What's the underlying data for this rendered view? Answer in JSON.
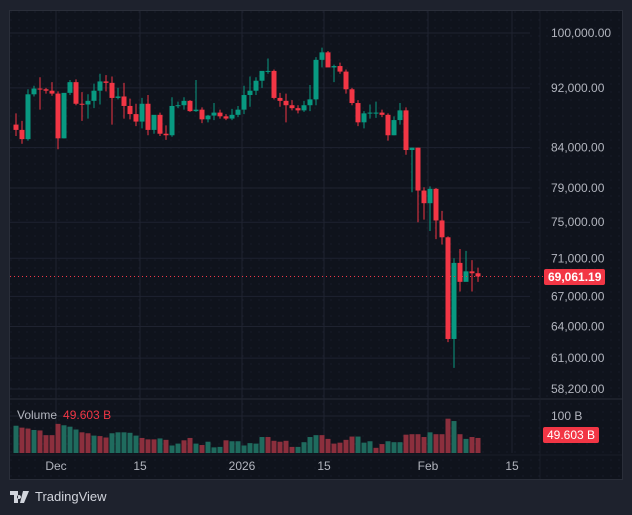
{
  "chart_data": {
    "type": "candlestick",
    "title": "",
    "scale": "log",
    "colors": {
      "up": "#089981",
      "down": "#f23645",
      "vol_up": "#1f6b5e",
      "vol_down": "#8c2f3d",
      "grid": "#1f2330",
      "bg": "#0f131c"
    },
    "y_ticks": [
      "100,000.00",
      "92,000.00",
      "84,000.00",
      "79,000.00",
      "75,000.00",
      "71,000.00",
      "67,000.00",
      "64,000.00",
      "61,000.00",
      "58,200.00"
    ],
    "y_tick_values": [
      100000,
      92000,
      84000,
      79000,
      75000,
      71000,
      67000,
      64000,
      61000,
      58200
    ],
    "x_ticks": [
      {
        "label": "Dec",
        "x": 46
      },
      {
        "label": "15",
        "x": 130
      },
      {
        "label": "2026",
        "x": 232
      },
      {
        "label": "15",
        "x": 314
      },
      {
        "label": "Feb",
        "x": 418
      },
      {
        "label": "15",
        "x": 502
      }
    ],
    "last_price": 69061.19,
    "last_price_label": "69,061.19",
    "volume": {
      "label": "Volume",
      "value_label": "49.603 B",
      "axis_tick": "100 B",
      "last_label": "49.603 B"
    },
    "candles": [
      [
        87000,
        88500,
        85500,
        86300
      ],
      [
        86300,
        87500,
        84500,
        85100
      ],
      [
        85100,
        91800,
        84900,
        91100
      ],
      [
        91100,
        92300,
        90800,
        91900
      ],
      [
        91900,
        93500,
        89000,
        91800
      ],
      [
        91800,
        92000,
        91200,
        91600
      ],
      [
        91600,
        92800,
        90900,
        91200
      ],
      [
        91200,
        91500,
        83800,
        85200
      ],
      [
        85200,
        91200,
        85200,
        91300
      ],
      [
        91300,
        93100,
        91000,
        92800
      ],
      [
        92800,
        93200,
        89600,
        89800
      ],
      [
        89800,
        91400,
        87500,
        89700
      ],
      [
        89700,
        91100,
        87800,
        90200
      ],
      [
        90200,
        92600,
        89200,
        91600
      ],
      [
        91600,
        94000,
        89700,
        92900
      ],
      [
        92900,
        93800,
        91500,
        92700
      ],
      [
        92700,
        93600,
        87000,
        90600
      ],
      [
        90600,
        92000,
        90400,
        90800
      ],
      [
        90800,
        92700,
        87800,
        89500
      ],
      [
        89500,
        90500,
        87700,
        88400
      ],
      [
        88400,
        89800,
        86800,
        87400
      ],
      [
        87400,
        90600,
        86500,
        89800
      ],
      [
        89800,
        91000,
        85600,
        86300
      ],
      [
        86300,
        87600,
        85800,
        88300
      ],
      [
        88300,
        88600,
        85500,
        85800
      ],
      [
        85800,
        86900,
        85000,
        85600
      ],
      [
        85600,
        90700,
        85400,
        89500
      ],
      [
        89500,
        90100,
        89200,
        89600
      ],
      [
        89600,
        90700,
        89000,
        90200
      ],
      [
        90200,
        90300,
        88700,
        88800
      ],
      [
        88800,
        93100,
        88700,
        89000
      ],
      [
        89000,
        89300,
        87200,
        87700
      ],
      [
        87700,
        88300,
        87300,
        88200
      ],
      [
        88200,
        89900,
        87600,
        88600
      ],
      [
        88600,
        89000,
        87800,
        88100
      ],
      [
        88100,
        88400,
        87600,
        87800
      ],
      [
        87800,
        89100,
        87600,
        88300
      ],
      [
        88300,
        89500,
        88000,
        89000
      ],
      [
        89000,
        92300,
        88400,
        91000
      ],
      [
        91000,
        93600,
        89400,
        91600
      ],
      [
        91600,
        93500,
        91000,
        93000
      ],
      [
        93000,
        94000,
        92000,
        94400
      ],
      [
        94400,
        96200,
        94000,
        94400
      ],
      [
        94400,
        94600,
        90400,
        90600
      ],
      [
        90600,
        91300,
        89400,
        90200
      ],
      [
        90200,
        91200,
        87300,
        89600
      ],
      [
        89600,
        90300,
        88900,
        89200
      ],
      [
        89200,
        89600,
        88500,
        88900
      ],
      [
        88900,
        90200,
        88700,
        89600
      ],
      [
        89600,
        92400,
        88800,
        90400
      ],
      [
        90400,
        96400,
        89600,
        96000
      ],
      [
        96000,
        97800,
        94900,
        97100
      ],
      [
        97100,
        97300,
        95000,
        94900
      ],
      [
        94900,
        95300,
        92800,
        95100
      ],
      [
        95100,
        95600,
        94000,
        94300
      ],
      [
        94300,
        94600,
        91200,
        91800
      ],
      [
        91800,
        92000,
        89600,
        89900
      ],
      [
        89900,
        90300,
        86800,
        87300
      ],
      [
        87300,
        88800,
        86500,
        88500
      ],
      [
        88500,
        89700,
        87800,
        88600
      ],
      [
        88600,
        90100,
        87900,
        88600
      ],
      [
        88600,
        89000,
        88000,
        88300
      ],
      [
        88300,
        88500,
        84900,
        85600
      ],
      [
        85600,
        88100,
        85600,
        87600
      ],
      [
        87600,
        89900,
        87000,
        88900
      ],
      [
        88900,
        89300,
        83100,
        83700
      ],
      [
        83700,
        84000,
        78500,
        84000
      ],
      [
        84000,
        84000,
        75000,
        78700
      ],
      [
        78700,
        79100,
        75300,
        77200
      ],
      [
        77200,
        79200,
        74000,
        78900
      ],
      [
        78900,
        79000,
        73100,
        75200
      ],
      [
        75200,
        76300,
        72500,
        73300
      ],
      [
        73300,
        73400,
        62500,
        62800
      ],
      [
        62800,
        71000,
        60100,
        70500
      ],
      [
        70500,
        72000,
        67500,
        68500
      ],
      [
        68500,
        71800,
        68800,
        69600
      ],
      [
        69600,
        70800,
        67500,
        69400
      ],
      [
        69400,
        70000,
        68500,
        69061
      ]
    ],
    "volumes": [
      [
        58,
        1
      ],
      [
        54,
        0
      ],
      [
        52,
        0
      ],
      [
        49,
        1
      ],
      [
        48,
        0
      ],
      [
        38,
        0
      ],
      [
        38,
        0
      ],
      [
        62,
        0
      ],
      [
        59,
        1
      ],
      [
        56,
        1
      ],
      [
        50,
        1
      ],
      [
        44,
        0
      ],
      [
        42,
        0
      ],
      [
        37,
        1
      ],
      [
        36,
        0
      ],
      [
        33,
        0
      ],
      [
        42,
        1
      ],
      [
        44,
        1
      ],
      [
        44,
        1
      ],
      [
        43,
        1
      ],
      [
        37,
        1
      ],
      [
        32,
        0
      ],
      [
        29,
        0
      ],
      [
        29,
        0
      ],
      [
        31,
        1
      ],
      [
        28,
        0
      ],
      [
        16,
        1
      ],
      [
        20,
        1
      ],
      [
        27,
        0
      ],
      [
        32,
        0
      ],
      [
        20,
        1
      ],
      [
        17,
        0
      ],
      [
        24,
        1
      ],
      [
        12,
        1
      ],
      [
        13,
        1
      ],
      [
        27,
        0
      ],
      [
        25,
        1
      ],
      [
        25,
        1
      ],
      [
        16,
        1
      ],
      [
        21,
        1
      ],
      [
        20,
        1
      ],
      [
        34,
        1
      ],
      [
        34,
        0
      ],
      [
        26,
        0
      ],
      [
        24,
        0
      ],
      [
        26,
        0
      ],
      [
        13,
        0
      ],
      [
        13,
        1
      ],
      [
        23,
        1
      ],
      [
        34,
        1
      ],
      [
        38,
        1
      ],
      [
        38,
        0
      ],
      [
        30,
        0
      ],
      [
        20,
        0
      ],
      [
        22,
        0
      ],
      [
        28,
        0
      ],
      [
        35,
        0
      ],
      [
        35,
        1
      ],
      [
        22,
        1
      ],
      [
        25,
        1
      ],
      [
        11,
        0
      ],
      [
        19,
        0
      ],
      [
        25,
        1
      ],
      [
        23,
        1
      ],
      [
        23,
        1
      ],
      [
        39,
        0
      ],
      [
        40,
        0
      ],
      [
        40,
        0
      ],
      [
        34,
        0
      ],
      [
        44,
        1
      ],
      [
        40,
        0
      ],
      [
        40,
        0
      ],
      [
        73,
        0
      ],
      [
        68,
        1
      ],
      [
        40,
        0
      ],
      [
        30,
        1
      ],
      [
        34,
        0
      ],
      [
        32,
        0
      ]
    ]
  },
  "branding": {
    "name": "TradingView"
  }
}
